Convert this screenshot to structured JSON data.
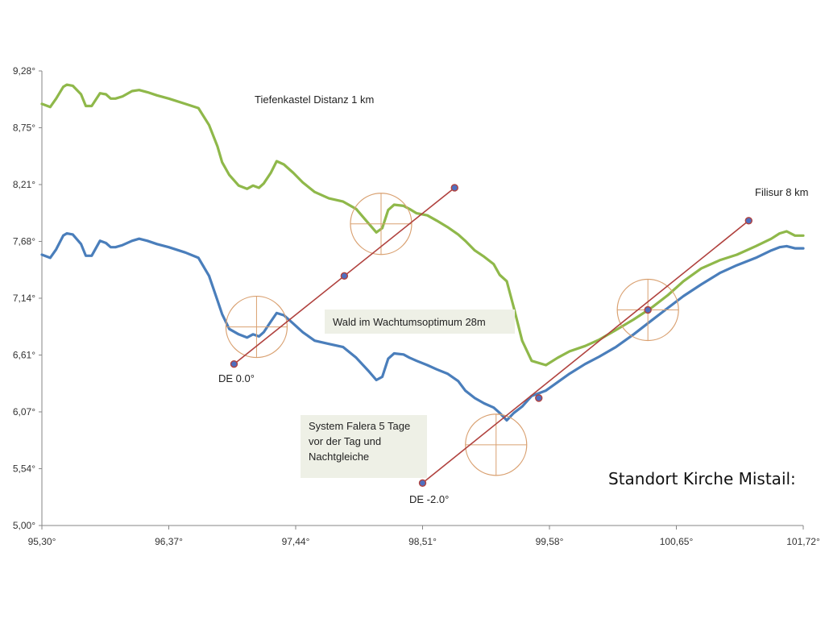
{
  "chart_data": {
    "type": "line",
    "title": "Standort Kirche Mistail:",
    "xlim": [
      95.3,
      101.72
    ],
    "ylim": [
      5.0,
      9.28
    ],
    "x_ticks": [
      "95,30°",
      "96,37°",
      "97,44°",
      "98,51°",
      "99,58°",
      "100,65°",
      "101,72°"
    ],
    "y_ticks": [
      "5,00°",
      "5,54°",
      "6,07°",
      "6,61°",
      "7,14°",
      "7,68°",
      "8,21°",
      "8,75°",
      "9,28°"
    ],
    "grid": false,
    "series": [
      {
        "color": "#8FB84A",
        "x": [
          95.3,
          95.37,
          95.42,
          95.48,
          95.51,
          95.56,
          95.63,
          95.67,
          95.72,
          95.79,
          95.84,
          95.88,
          95.92,
          95.98,
          96.06,
          96.12,
          96.19,
          96.27,
          96.37,
          96.51,
          96.62,
          96.71,
          96.78,
          96.82,
          96.88,
          96.96,
          97.03,
          97.08,
          97.13,
          97.17,
          97.23,
          97.28,
          97.34,
          97.42,
          97.5,
          97.6,
          97.72,
          97.84,
          97.95,
          98.05,
          98.12,
          98.17,
          98.22,
          98.27,
          98.35,
          98.4,
          98.46,
          98.55,
          98.63,
          98.72,
          98.81,
          98.87,
          98.95,
          99.03,
          99.11,
          99.16,
          99.22,
          99.28,
          99.35,
          99.43,
          99.55,
          99.65,
          99.75,
          99.88,
          100.0,
          100.14,
          100.29,
          100.44,
          100.58,
          100.71,
          100.86,
          101.02,
          101.16,
          101.32,
          101.45,
          101.52,
          101.58,
          101.65,
          101.72
        ],
        "y": [
          8.97,
          8.94,
          9.02,
          9.13,
          9.15,
          9.14,
          9.06,
          8.95,
          8.95,
          9.07,
          9.06,
          9.02,
          9.02,
          9.04,
          9.09,
          9.1,
          9.08,
          9.05,
          9.02,
          8.97,
          8.93,
          8.77,
          8.57,
          8.42,
          8.3,
          8.2,
          8.17,
          8.2,
          8.18,
          8.22,
          8.32,
          8.43,
          8.4,
          8.32,
          8.23,
          8.14,
          8.08,
          8.05,
          7.98,
          7.85,
          7.76,
          7.8,
          7.97,
          8.02,
          8.01,
          7.98,
          7.94,
          7.92,
          7.87,
          7.81,
          7.74,
          7.68,
          7.59,
          7.53,
          7.46,
          7.36,
          7.3,
          7.05,
          6.74,
          6.55,
          6.51,
          6.58,
          6.64,
          6.69,
          6.75,
          6.84,
          6.94,
          7.05,
          7.17,
          7.3,
          7.42,
          7.5,
          7.55,
          7.63,
          7.7,
          7.75,
          7.77,
          7.73,
          7.73
        ]
      },
      {
        "color": "#4A7EBB",
        "x": [
          95.3,
          95.37,
          95.42,
          95.48,
          95.51,
          95.56,
          95.63,
          95.67,
          95.72,
          95.79,
          95.84,
          95.88,
          95.92,
          95.98,
          96.06,
          96.12,
          96.19,
          96.27,
          96.37,
          96.51,
          96.62,
          96.71,
          96.78,
          96.82,
          96.88,
          96.96,
          97.03,
          97.08,
          97.13,
          97.17,
          97.23,
          97.28,
          97.34,
          97.42,
          97.5,
          97.6,
          97.72,
          97.84,
          97.95,
          98.05,
          98.12,
          98.17,
          98.22,
          98.27,
          98.35,
          98.4,
          98.46,
          98.55,
          98.63,
          98.72,
          98.81,
          98.87,
          98.95,
          99.03,
          99.11,
          99.16,
          99.22,
          99.28,
          99.35,
          99.43,
          99.55,
          99.65,
          99.75,
          99.88,
          100.0,
          100.14,
          100.29,
          100.44,
          100.58,
          100.71,
          100.86,
          101.02,
          101.16,
          101.32,
          101.45,
          101.52,
          101.58,
          101.65,
          101.72
        ],
        "y": [
          7.55,
          7.52,
          7.6,
          7.73,
          7.75,
          7.74,
          7.65,
          7.54,
          7.54,
          7.68,
          7.66,
          7.62,
          7.62,
          7.64,
          7.68,
          7.7,
          7.68,
          7.65,
          7.62,
          7.57,
          7.52,
          7.35,
          7.12,
          6.99,
          6.85,
          6.8,
          6.77,
          6.8,
          6.78,
          6.82,
          6.92,
          7.0,
          6.98,
          6.9,
          6.82,
          6.74,
          6.71,
          6.68,
          6.58,
          6.46,
          6.37,
          6.4,
          6.57,
          6.62,
          6.61,
          6.58,
          6.55,
          6.51,
          6.47,
          6.43,
          6.36,
          6.27,
          6.2,
          6.15,
          6.11,
          6.06,
          5.99,
          6.06,
          6.12,
          6.22,
          6.27,
          6.35,
          6.43,
          6.52,
          6.59,
          6.68,
          6.8,
          6.93,
          7.05,
          7.16,
          7.27,
          7.38,
          7.45,
          7.52,
          7.59,
          7.62,
          7.63,
          7.61,
          7.61
        ]
      }
    ],
    "lines": [
      {
        "color": "#B0413E",
        "x1": 96.92,
        "y1": 6.52,
        "x2": 98.78,
        "y2": 8.18,
        "mid_x": 97.85,
        "mid_y": 7.35
      },
      {
        "color": "#B0413E",
        "x1": 98.51,
        "y1": 5.4,
        "x2": 101.26,
        "y2": 7.87,
        "mid_x": 99.49,
        "mid_y": 6.2,
        "mid2_x": 100.41,
        "mid2_y": 7.03
      }
    ],
    "sun_symbols": [
      {
        "x": 97.11,
        "y": 6.87
      },
      {
        "x": 98.16,
        "y": 7.84
      },
      {
        "x": 99.13,
        "y": 5.76
      },
      {
        "x": 100.41,
        "y": 7.03
      }
    ],
    "annotations": {
      "tiefenkastel": "Tiefenkastel  Distanz 1 km",
      "filisur": "Filisur 8 km",
      "de0": "DE  0.0°",
      "de2": "DE -2.0°",
      "wald": "Wald im Wachtumsoptimum 28m",
      "system_line1": "System Falera 5 Tage",
      "system_line2": "vor der Tag und",
      "system_line3": "Nachtgleiche"
    }
  },
  "colors": {
    "green_series": "#8FB84A",
    "blue_series": "#4A7EBB",
    "red_line": "#B0413E",
    "marker_fill": "#4F6FC0",
    "sun_symbol": "#D9A070",
    "box_fill": "#EEF0E6"
  }
}
